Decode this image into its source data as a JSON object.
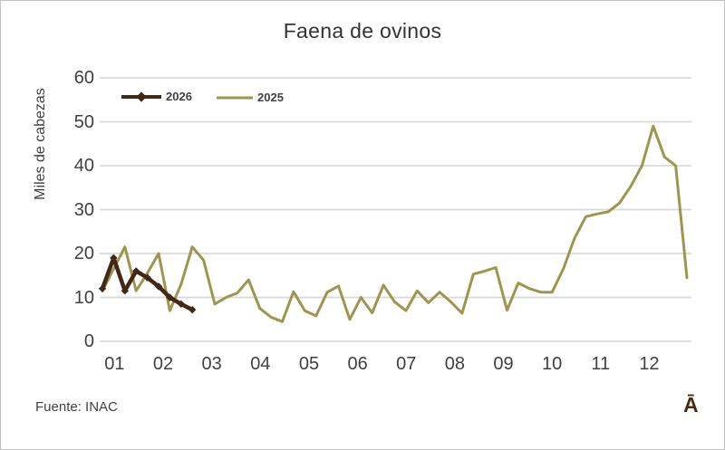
{
  "window": {
    "source_note": "Fuente: INAC",
    "corner_glyph": "Ā"
  },
  "colors": {
    "background": "#FFFFFF",
    "border": "#C2C2C2",
    "text": "#404040",
    "title_text": "#333333",
    "gridline": "#D9D9D9",
    "series_2026": "#432818",
    "series_2025": "#9E9551",
    "corner_glyph": "#4A2A12"
  },
  "chart_data": {
    "type": "line",
    "title": "Faena de ovinos",
    "xlabel": "",
    "ylabel": "Miles de cabezas",
    "ylim": [
      0,
      60
    ],
    "yticks": [
      0,
      10,
      20,
      30,
      40,
      50,
      60
    ],
    "x_months": [
      "01",
      "02",
      "03",
      "04",
      "05",
      "06",
      "07",
      "08",
      "09",
      "10",
      "11",
      "12"
    ],
    "x_unit": "weekly data points across the year (months labeled 01-12)",
    "grid": "horizontal gridlines only",
    "legend": {
      "position": "top-left inside plot",
      "entries": [
        "2026",
        "2025"
      ]
    },
    "series": [
      {
        "name": "2025",
        "color": "#9E9551",
        "line_width": 3,
        "marker": "none",
        "values": [
          11.5,
          16.5,
          21.5,
          11.5,
          15.5,
          20,
          7,
          13,
          21.5,
          18.5,
          8.5,
          10,
          11,
          14,
          7.5,
          5.5,
          4.5,
          11.3,
          7,
          5.8,
          11.2,
          12.6,
          5,
          10,
          6.5,
          12.8,
          9,
          7,
          11.5,
          8.8,
          11.2,
          9,
          6.4,
          15.3,
          16,
          16.8,
          7.1,
          13.3,
          12,
          11.2,
          11.2,
          16.5,
          23.5,
          28.4,
          29,
          29.5,
          31.5,
          35.3,
          40,
          49,
          42,
          40,
          14.5
        ]
      },
      {
        "name": "2026",
        "color": "#432818",
        "line_width": 4.5,
        "marker": "diamond",
        "values": [
          12,
          19,
          11.5,
          16,
          14.5,
          12.5,
          10,
          8.5,
          7.2
        ]
      }
    ]
  }
}
